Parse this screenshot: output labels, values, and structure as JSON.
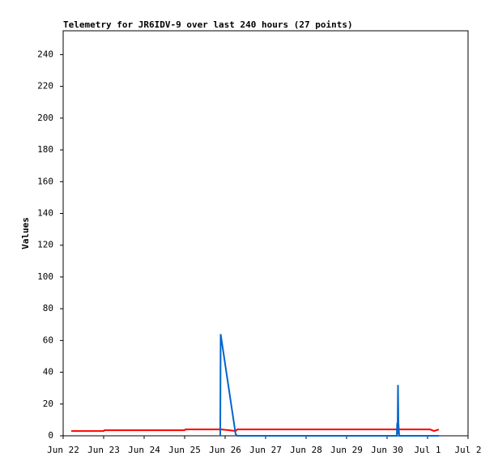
{
  "chart_data": {
    "type": "line",
    "title": "Telemetry for JR6IDV-9 over last 240 hours (27 points)",
    "y_label": "Values",
    "xlim": [
      0,
      10
    ],
    "xticks": [
      {
        "value": 0,
        "label": "Jun 22"
      },
      {
        "value": 1,
        "label": "Jun 23"
      },
      {
        "value": 2,
        "label": "Jun 24"
      },
      {
        "value": 3,
        "label": "Jun 25"
      },
      {
        "value": 4,
        "label": "Jun 26"
      },
      {
        "value": 5,
        "label": "Jun 27"
      },
      {
        "value": 6,
        "label": "Jun 28"
      },
      {
        "value": 7,
        "label": "Jun 29"
      },
      {
        "value": 8,
        "label": "Jun 30"
      },
      {
        "value": 9,
        "label": "Jul 1"
      },
      {
        "value": 10,
        "label": "Jul 2"
      }
    ],
    "ylim": [
      0,
      255
    ],
    "yticks": [
      0,
      20,
      40,
      60,
      80,
      100,
      120,
      140,
      160,
      180,
      200,
      220,
      240
    ],
    "grid": false,
    "series": [
      {
        "color": "#ff0000",
        "x": [
          0.2,
          1.0,
          1.02,
          3.0,
          3.02,
          3.9,
          4.1,
          4.26,
          4.3,
          6.0,
          8.0,
          9.06,
          9.16,
          9.28
        ],
        "values": [
          3,
          3,
          3.5,
          3.5,
          4,
          4,
          3.5,
          3,
          4,
          4,
          4,
          4,
          3,
          4
        ]
      },
      {
        "color": "#0066cc",
        "x": [
          3.88,
          3.89,
          4.26,
          4.3,
          6.0,
          8.24,
          8.25,
          8.26,
          8.27,
          8.28,
          8.3,
          9.0,
          9.28
        ],
        "values": [
          0,
          64,
          1,
          0,
          0,
          0,
          8,
          1,
          32,
          8,
          0,
          0,
          0
        ]
      }
    ]
  }
}
